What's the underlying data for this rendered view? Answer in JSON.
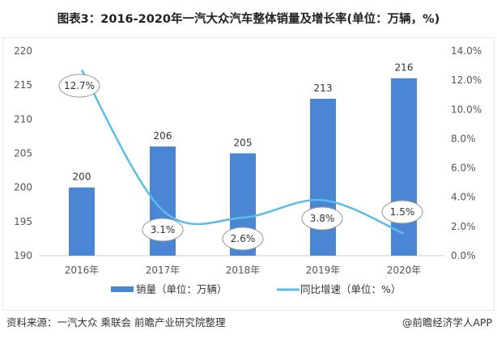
{
  "chart_data": {
    "type": "bar+line",
    "title": "图表3：2016-2020年一汽大众汽车整体销量及增长率(单位：万辆，%)",
    "categories": [
      "2016年",
      "2017年",
      "2018年",
      "2019年",
      "2020年"
    ],
    "series": [
      {
        "name": "销量（单位：万辆）",
        "type": "bar",
        "axis": "left",
        "values": [
          200,
          206,
          205,
          213,
          216
        ],
        "labels": [
          "200",
          "206",
          "205",
          "213",
          "216"
        ],
        "color": "#4a86d4"
      },
      {
        "name": "同比增速（单位：%）",
        "type": "line",
        "axis": "right",
        "values": [
          12.7,
          3.1,
          2.6,
          3.8,
          1.5
        ],
        "labels": [
          "12.7%",
          "3.1%",
          "2.6%",
          "3.8%",
          "1.5%"
        ],
        "color": "#5bbce8"
      }
    ],
    "left_axis": {
      "ylim": [
        190,
        220
      ],
      "ticks": [
        "190",
        "195",
        "200",
        "205",
        "210",
        "215",
        "220"
      ]
    },
    "right_axis": {
      "ylim": [
        0,
        14
      ],
      "ticks": [
        "0.0%",
        "2.0%",
        "4.0%",
        "6.0%",
        "8.0%",
        "10.0%",
        "12.0%",
        "14.0%"
      ]
    },
    "grid": false,
    "legend": "bottom"
  },
  "footer": {
    "source": "资料来源：一汽大众 乘联会 前瞻产业研究院整理",
    "brand": "@前瞻经济学人APP"
  }
}
